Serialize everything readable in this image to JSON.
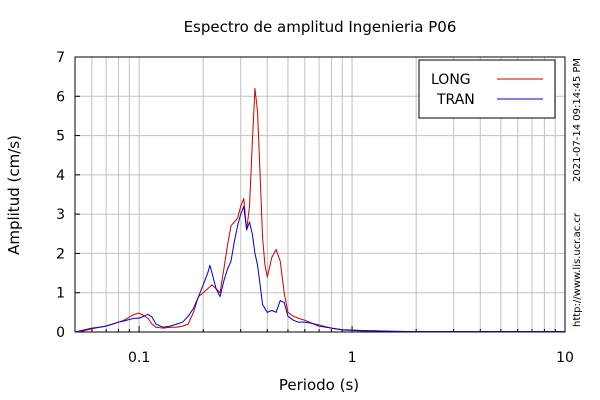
{
  "chart_data": {
    "type": "line",
    "title": "Espectro de amplitud Ingenieria P06",
    "xlabel": "Periodo (s)",
    "ylabel": "Amplitud (cm/s)",
    "x_scale": "log",
    "xlim": [
      0.05,
      10
    ],
    "ylim": [
      0,
      7
    ],
    "x_ticks": [
      0.1,
      1,
      10
    ],
    "x_tick_labels": [
      "0.1",
      "1",
      "10"
    ],
    "y_ticks": [
      0,
      1,
      2,
      3,
      4,
      5,
      6,
      7
    ],
    "y_tick_labels": [
      "0",
      "1",
      "2",
      "3",
      "4",
      "5",
      "6",
      "7"
    ],
    "grid": true,
    "legend_position": "top-right",
    "series": [
      {
        "name": "LONG",
        "color": "#cc0000",
        "x": [
          0.05,
          0.055,
          0.06,
          0.065,
          0.07,
          0.075,
          0.08,
          0.085,
          0.09,
          0.095,
          0.1,
          0.105,
          0.11,
          0.115,
          0.12,
          0.13,
          0.14,
          0.15,
          0.16,
          0.17,
          0.18,
          0.19,
          0.2,
          0.21,
          0.22,
          0.23,
          0.24,
          0.25,
          0.26,
          0.27,
          0.28,
          0.29,
          0.3,
          0.31,
          0.32,
          0.33,
          0.34,
          0.35,
          0.36,
          0.37,
          0.38,
          0.39,
          0.4,
          0.42,
          0.44,
          0.46,
          0.48,
          0.5,
          0.53,
          0.56,
          0.6,
          0.65,
          0.7,
          0.8,
          0.9,
          1.0,
          1.1,
          1.3,
          1.5,
          2.0,
          3.0,
          5.0,
          7.0,
          10.0
        ],
        "y": [
          0.0,
          0.03,
          0.08,
          0.12,
          0.15,
          0.2,
          0.25,
          0.3,
          0.38,
          0.45,
          0.48,
          0.42,
          0.35,
          0.2,
          0.12,
          0.1,
          0.12,
          0.12,
          0.15,
          0.2,
          0.5,
          0.9,
          1.0,
          1.1,
          1.2,
          1.1,
          1.0,
          1.6,
          2.2,
          2.7,
          2.8,
          2.9,
          3.2,
          3.4,
          2.6,
          3.2,
          4.8,
          6.2,
          5.6,
          4.0,
          2.4,
          1.7,
          1.4,
          1.9,
          2.1,
          1.8,
          1.0,
          0.5,
          0.4,
          0.35,
          0.3,
          0.22,
          0.18,
          0.1,
          0.06,
          0.05,
          0.04,
          0.03,
          0.02,
          0.01,
          0.01,
          0.01,
          0.01,
          0.01
        ]
      },
      {
        "name": "TRAN",
        "color": "#0000cc",
        "x": [
          0.05,
          0.055,
          0.06,
          0.065,
          0.07,
          0.075,
          0.08,
          0.085,
          0.09,
          0.095,
          0.1,
          0.105,
          0.11,
          0.115,
          0.12,
          0.13,
          0.14,
          0.15,
          0.16,
          0.17,
          0.18,
          0.19,
          0.2,
          0.21,
          0.215,
          0.22,
          0.23,
          0.24,
          0.25,
          0.26,
          0.27,
          0.28,
          0.29,
          0.3,
          0.31,
          0.32,
          0.33,
          0.34,
          0.35,
          0.36,
          0.37,
          0.38,
          0.39,
          0.4,
          0.42,
          0.44,
          0.46,
          0.48,
          0.5,
          0.53,
          0.56,
          0.6,
          0.65,
          0.7,
          0.8,
          0.9,
          1.0,
          1.1,
          1.3,
          1.5,
          2.0,
          3.0,
          5.0,
          7.0,
          10.0
        ],
        "y": [
          0.0,
          0.05,
          0.1,
          0.12,
          0.15,
          0.2,
          0.25,
          0.28,
          0.32,
          0.35,
          0.35,
          0.4,
          0.45,
          0.38,
          0.2,
          0.12,
          0.15,
          0.2,
          0.25,
          0.4,
          0.6,
          0.9,
          1.2,
          1.5,
          1.7,
          1.5,
          1.1,
          0.9,
          1.3,
          1.6,
          1.8,
          2.3,
          2.7,
          3.0,
          3.2,
          2.6,
          2.8,
          2.5,
          2.0,
          1.7,
          1.2,
          0.7,
          0.6,
          0.5,
          0.55,
          0.5,
          0.8,
          0.75,
          0.4,
          0.3,
          0.25,
          0.25,
          0.22,
          0.15,
          0.1,
          0.05,
          0.04,
          0.03,
          0.03,
          0.02,
          0.01,
          0.01,
          0.01,
          0.01,
          0.01
        ]
      }
    ]
  },
  "side_text": {
    "timestamp": "2021-07-14 09:14:45 PM",
    "url": "http://www.lis.ucr.ac.cr"
  }
}
